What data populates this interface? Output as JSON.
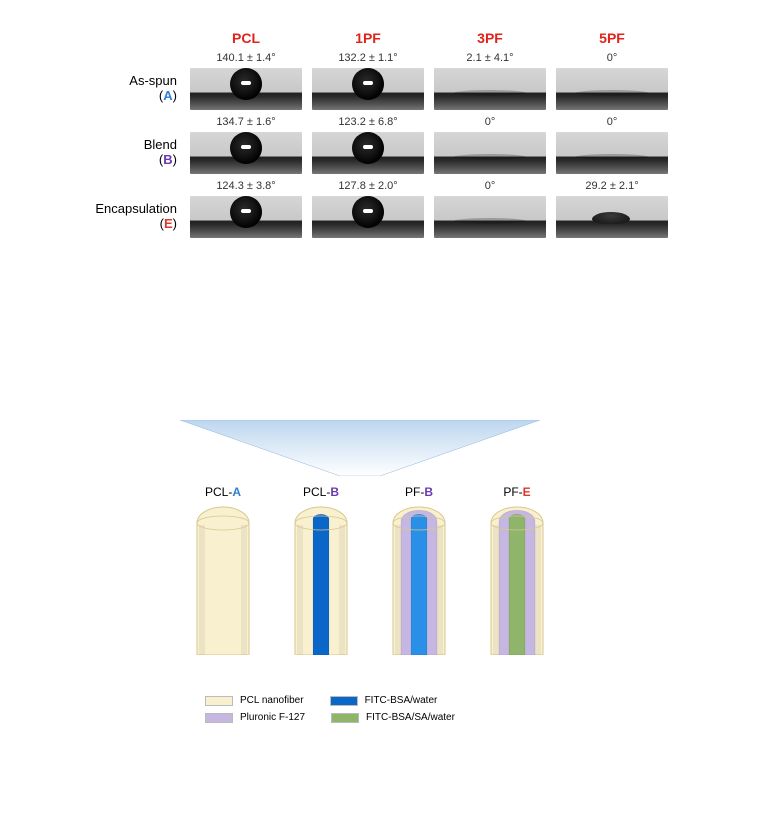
{
  "colors": {
    "header_red": "#e2231a",
    "letter_A": "#2f7fd1",
    "letter_B": "#6a3ab2",
    "letter_E": "#d83a2f",
    "angle_text": "#444444",
    "pcl_fill": "#f9f0cf",
    "pcl_stroke": "#d6c98e",
    "pluronic": "#c6b7e2",
    "fitc_blue": "#0a67c9",
    "fitc_blue_light": "#2a8fe6",
    "fitc_green": "#8eb56a",
    "funnel_stroke": "#2f7fd1"
  },
  "column_headers": [
    "PCL",
    "1PF",
    "3PF",
    "5PF"
  ],
  "rows": [
    {
      "label": "As-spun",
      "letter": "A",
      "letter_color_key": "letter_A",
      "angles": [
        "140.1 ± 1.4°",
        "132.2 ± 1.1°",
        "2.1 ± 4.1°",
        "0°"
      ],
      "drops": [
        "big",
        "big",
        "flat",
        "flat"
      ]
    },
    {
      "label": "Blend",
      "letter": "B",
      "letter_color_key": "letter_B",
      "angles": [
        "134.7 ± 1.6°",
        "123.2 ± 6.8°",
        "0°",
        "0°"
      ],
      "drops": [
        "big",
        "big",
        "flat",
        "flat"
      ]
    },
    {
      "label": "Encapsulation",
      "letter": "E",
      "letter_color_key": "letter_E",
      "angles": [
        "124.3 ± 3.8°",
        "127.8 ± 2.0°",
        "0°",
        "29.2 ± 2.1°"
      ],
      "drops": [
        "big",
        "big",
        "flat",
        "low"
      ]
    }
  ],
  "diagram_headers": [
    {
      "prefix": "PCL-",
      "letter": "A",
      "letter_color_key": "letter_A"
    },
    {
      "prefix": "PCL-",
      "letter": "B",
      "letter_color_key": "letter_B"
    },
    {
      "prefix": "PF-",
      "letter": "B",
      "letter_color_key": "letter_B"
    },
    {
      "prefix": "PF-",
      "letter": "E",
      "letter_color_key": "letter_E"
    }
  ],
  "fibers": [
    {
      "layers": []
    },
    {
      "layers": [
        {
          "kind": "core",
          "color_key": "fitc_blue",
          "w": 8
        }
      ]
    },
    {
      "layers": [
        {
          "kind": "ring",
          "color_key": "pluronic",
          "w": 18
        },
        {
          "kind": "core",
          "color_key": "fitc_blue_light",
          "w": 8
        }
      ]
    },
    {
      "layers": [
        {
          "kind": "ring",
          "color_key": "pluronic",
          "w": 18
        },
        {
          "kind": "core",
          "color_key": "fitc_green",
          "w": 8
        }
      ]
    }
  ],
  "legend": [
    [
      {
        "color_key": "pcl_fill",
        "label": "PCL nanofiber"
      },
      {
        "color_key": "fitc_blue",
        "label": "FITC-BSA/water"
      }
    ],
    [
      {
        "color_key": "pluronic",
        "label": "Pluronic F-127"
      },
      {
        "color_key": "fitc_green",
        "label": "FITC-BSA/SA/water"
      }
    ]
  ]
}
